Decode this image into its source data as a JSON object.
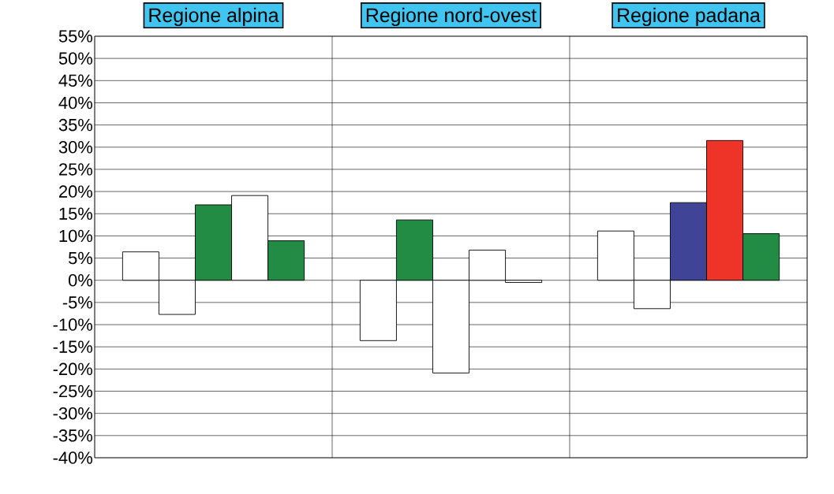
{
  "chart_data": {
    "type": "bar",
    "categories": [
      "Regione alpina",
      "Regione nord-ovest",
      "Regione padana"
    ],
    "series": [
      {
        "colors": [
          "#ffffff",
          "#ffffff",
          "#ffffff"
        ],
        "values": [
          6.4,
          -13.6,
          11.1
        ]
      },
      {
        "colors": [
          "#ffffff",
          "#228b44",
          "#ffffff"
        ],
        "values": [
          -7.7,
          13.6,
          -6.4
        ]
      },
      {
        "colors": [
          "#228b44",
          "#ffffff",
          "#404496"
        ],
        "values": [
          17.0,
          -20.9,
          17.5
        ]
      },
      {
        "colors": [
          "#ffffff",
          "#ffffff",
          "#ee3329"
        ],
        "values": [
          19.1,
          6.8,
          31.5
        ]
      },
      {
        "colors": [
          "#228b44",
          "#ffffff",
          "#228b44"
        ],
        "values": [
          8.9,
          -0.5,
          10.5
        ]
      }
    ],
    "ylim": [
      -40,
      55
    ],
    "yticks": [
      {
        "value": -40,
        "label": "-40%"
      },
      {
        "value": -35,
        "label": "-35%"
      },
      {
        "value": -30,
        "label": "-30%"
      },
      {
        "value": -25,
        "label": "-25%"
      },
      {
        "value": -20,
        "label": "-20%"
      },
      {
        "value": -15,
        "label": "-15%"
      },
      {
        "value": -10,
        "label": "-10%"
      },
      {
        "value": -5,
        "label": "-5%"
      },
      {
        "value": 0,
        "label": "0%"
      },
      {
        "value": 5,
        "label": "5%"
      },
      {
        "value": 10,
        "label": "10%"
      },
      {
        "value": 15,
        "label": "15%"
      },
      {
        "value": 20,
        "label": "20%"
      },
      {
        "value": 25,
        "label": "25%"
      },
      {
        "value": 30,
        "label": "30%"
      },
      {
        "value": 35,
        "label": "35%"
      },
      {
        "value": 40,
        "label": "40%"
      },
      {
        "value": 45,
        "label": "45%"
      },
      {
        "value": 50,
        "label": "50%"
      },
      {
        "value": 55,
        "label": "55%"
      }
    ],
    "grid": "y"
  }
}
